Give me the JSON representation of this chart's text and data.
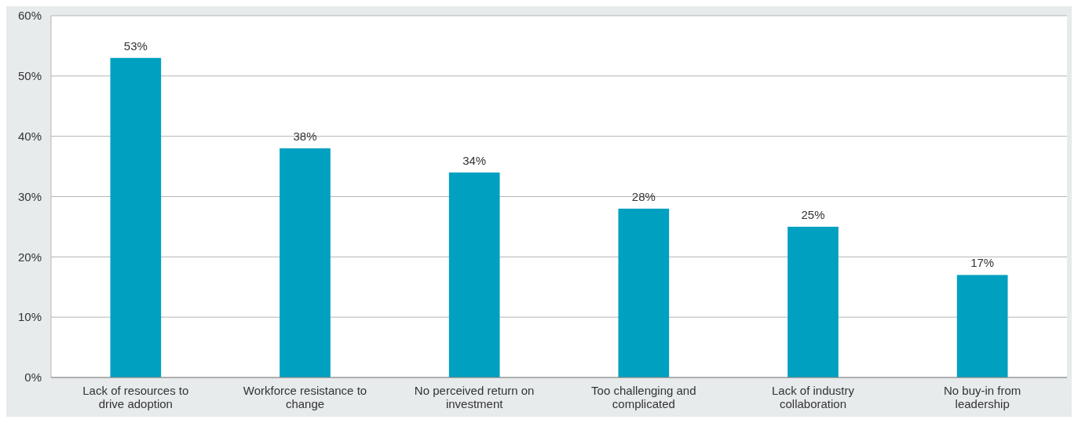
{
  "chart_data": {
    "type": "bar",
    "categories": [
      "Lack of resources to drive adoption",
      "Workforce resistance to change",
      "No perceived return on investment",
      "Too challenging and complicated",
      "Lack of industry collaboration",
      "No buy-in from leadership"
    ],
    "values": [
      53,
      38,
      34,
      28,
      25,
      17
    ],
    "color": "#00a0c0",
    "ylim": [
      0,
      60
    ],
    "yticks": [
      {
        "value": 0,
        "label": "0%"
      },
      {
        "value": 10,
        "label": "10%"
      },
      {
        "value": 20,
        "label": "20%"
      },
      {
        "value": 30,
        "label": "30%"
      },
      {
        "value": 40,
        "label": "40%"
      },
      {
        "value": 50,
        "label": "50%"
      },
      {
        "value": 60,
        "label": "60%"
      }
    ],
    "grid": "y",
    "value_labels": [
      "53%",
      "38%",
      "34%",
      "28%",
      "25%",
      "17%"
    ]
  }
}
